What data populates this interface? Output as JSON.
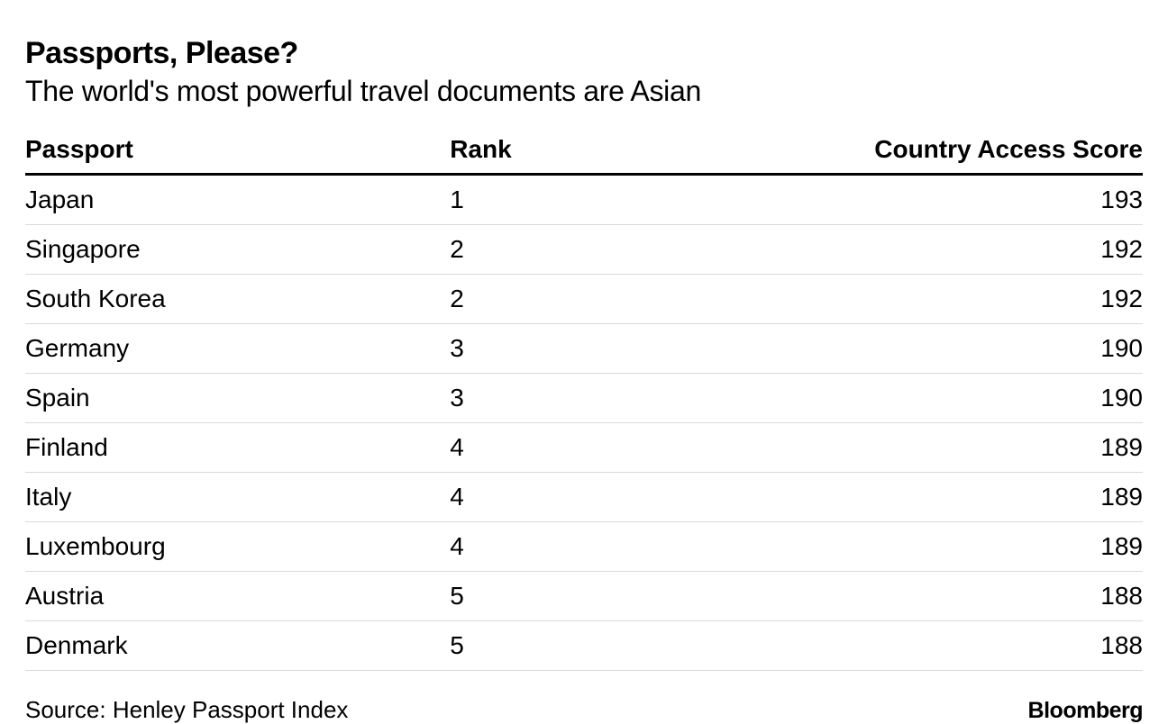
{
  "title": "Passports, Please?",
  "subtitle": "The world's most powerful travel documents are Asian",
  "table": {
    "columns": {
      "passport": "Passport",
      "rank": "Rank",
      "score": "Country Access Score"
    },
    "rows": [
      {
        "passport": "Japan",
        "rank": "1",
        "score": "193"
      },
      {
        "passport": "Singapore",
        "rank": "2",
        "score": "192"
      },
      {
        "passport": "South Korea",
        "rank": "2",
        "score": "192"
      },
      {
        "passport": "Germany",
        "rank": "3",
        "score": "190"
      },
      {
        "passport": "Spain",
        "rank": "3",
        "score": "190"
      },
      {
        "passport": "Finland",
        "rank": "4",
        "score": "189"
      },
      {
        "passport": "Italy",
        "rank": "4",
        "score": "189"
      },
      {
        "passport": "Luxembourg",
        "rank": "4",
        "score": "189"
      },
      {
        "passport": "Austria",
        "rank": "5",
        "score": "188"
      },
      {
        "passport": "Denmark",
        "rank": "5",
        "score": "188"
      }
    ],
    "styling": {
      "type": "table",
      "header_fontsize": 28,
      "header_fontweight": 700,
      "cell_fontsize": 28,
      "cell_fontweight": 400,
      "header_border_color": "#000000",
      "header_border_width": 3,
      "row_border_color": "#d9d9d9",
      "row_border_width": 1,
      "text_color": "#000000",
      "background_color": "#ffffff",
      "column_widths_pct": [
        38,
        20,
        42
      ],
      "column_align": [
        "left",
        "left",
        "right"
      ]
    }
  },
  "source": "Source: Henley Passport Index",
  "brand": "Bloomberg",
  "typography": {
    "title_fontsize": 34,
    "title_fontweight": 800,
    "subtitle_fontsize": 32,
    "subtitle_fontweight": 400,
    "source_fontsize": 26,
    "brand_fontsize": 25,
    "brand_fontweight": 800
  }
}
